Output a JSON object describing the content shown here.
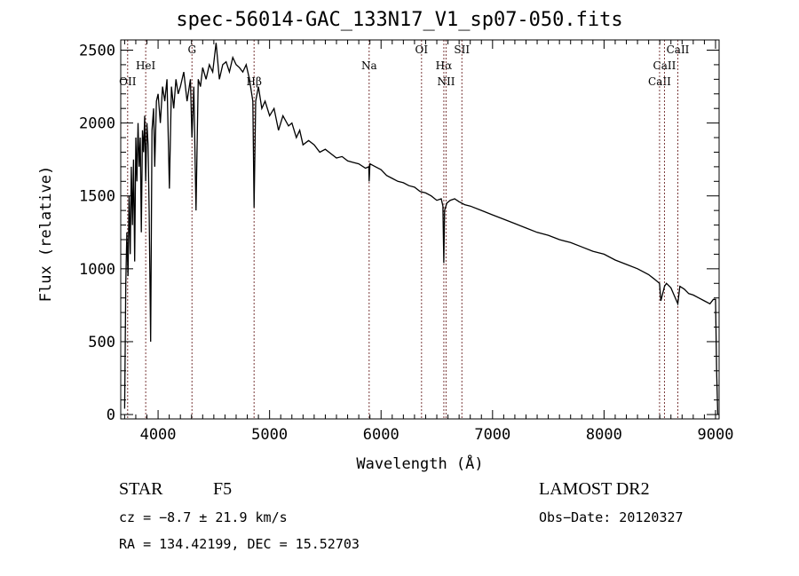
{
  "chart_data": {
    "type": "line",
    "title": "spec-56014-GAC_133N17_V1_sp07-050.fits",
    "xlabel": "Wavelength (Å)",
    "ylabel": "Flux (relative)",
    "xlim": [
      3665,
      9032
    ],
    "ylim": [
      -30,
      2570
    ],
    "xticks": [
      4000,
      5000,
      6000,
      7000,
      8000,
      9000
    ],
    "yticks": [
      0,
      500,
      1000,
      1500,
      2000,
      2500
    ],
    "grid": false,
    "line_color": "#000000",
    "marker_color": "#7a3a3a",
    "series": [
      {
        "name": "spectrum",
        "x": [
          3700,
          3710,
          3720,
          3730,
          3740,
          3750,
          3760,
          3770,
          3780,
          3790,
          3800,
          3810,
          3820,
          3830,
          3840,
          3850,
          3860,
          3870,
          3880,
          3889,
          3900,
          3910,
          3920,
          3933,
          3945,
          3960,
          3970,
          3985,
          4000,
          4020,
          4040,
          4060,
          4080,
          4101,
          4120,
          4140,
          4160,
          4180,
          4200,
          4230,
          4260,
          4290,
          4304,
          4320,
          4340,
          4360,
          4380,
          4400,
          4430,
          4460,
          4490,
          4520,
          4550,
          4580,
          4610,
          4640,
          4670,
          4700,
          4730,
          4760,
          4790,
          4820,
          4850,
          4861,
          4875,
          4900,
          4930,
          4960,
          5000,
          5040,
          5080,
          5120,
          5170,
          5200,
          5240,
          5270,
          5300,
          5350,
          5400,
          5450,
          5500,
          5550,
          5600,
          5650,
          5700,
          5750,
          5800,
          5860,
          5890,
          5893,
          5900,
          5950,
          6000,
          6050,
          6100,
          6150,
          6200,
          6250,
          6300,
          6350,
          6400,
          6450,
          6500,
          6540,
          6555,
          6563,
          6570,
          6590,
          6620,
          6660,
          6700,
          6750,
          6800,
          6900,
          7000,
          7100,
          7200,
          7300,
          7400,
          7500,
          7600,
          7700,
          7800,
          7900,
          8000,
          8100,
          8200,
          8300,
          8400,
          8450,
          8498,
          8510,
          8542,
          8560,
          8600,
          8662,
          8680,
          8720,
          8760,
          8800,
          8850,
          8900,
          8950,
          8980,
          9000,
          9010,
          9020
        ],
        "y": [
          40,
          900,
          1250,
          950,
          1500,
          1100,
          1700,
          1300,
          1750,
          1050,
          1900,
          1600,
          2000,
          1700,
          1900,
          1250,
          1950,
          1800,
          2050,
          1600,
          2000,
          1850,
          1400,
          500,
          1950,
          2100,
          1700,
          2150,
          2200,
          2000,
          2250,
          2150,
          2300,
          1550,
          2250,
          2100,
          2300,
          2200,
          2250,
          2350,
          2150,
          2300,
          1900,
          2250,
          1400,
          2300,
          2250,
          2380,
          2300,
          2400,
          2350,
          2550,
          2300,
          2400,
          2420,
          2350,
          2450,
          2400,
          2380,
          2350,
          2400,
          2300,
          2150,
          1420,
          2150,
          2250,
          2100,
          2150,
          2050,
          2100,
          1950,
          2050,
          1980,
          2000,
          1900,
          1950,
          1850,
          1880,
          1850,
          1800,
          1820,
          1790,
          1760,
          1770,
          1740,
          1730,
          1720,
          1690,
          1700,
          1600,
          1720,
          1700,
          1680,
          1640,
          1620,
          1600,
          1590,
          1570,
          1560,
          1530,
          1520,
          1500,
          1470,
          1480,
          1430,
          1040,
          1400,
          1450,
          1470,
          1480,
          1460,
          1440,
          1430,
          1400,
          1370,
          1340,
          1310,
          1280,
          1250,
          1230,
          1200,
          1180,
          1150,
          1120,
          1100,
          1060,
          1030,
          1000,
          960,
          930,
          900,
          780,
          880,
          900,
          870,
          760,
          880,
          860,
          830,
          820,
          800,
          780,
          760,
          790,
          790,
          300,
          0
        ]
      }
    ],
    "line_markers": [
      {
        "label": "OII",
        "x": 3727,
        "row": 3
      },
      {
        "label": "HeI",
        "x": 3889,
        "row": 2
      },
      {
        "label": "G",
        "x": 4304,
        "row": 1
      },
      {
        "label": "Hβ",
        "x": 4861,
        "row": 3
      },
      {
        "label": "Na",
        "x": 5893,
        "row": 2
      },
      {
        "label": "OI",
        "x": 6363,
        "row": 1
      },
      {
        "label": "Hα",
        "x": 6563,
        "row": 2
      },
      {
        "label": "NII",
        "x": 6583,
        "row": 3
      },
      {
        "label": "SII",
        "x": 6725,
        "row": 1
      },
      {
        "label": "CaII",
        "x": 8498,
        "row": 3
      },
      {
        "label": "CaII",
        "x": 8542,
        "row": 2
      },
      {
        "label": "CaII",
        "x": 8662,
        "row": 1
      }
    ]
  },
  "info": {
    "class": "STAR",
    "subclass": "F5",
    "survey": "LAMOST DR2",
    "cz": "cz = −8.7 ± 21.9 km/s",
    "obs_date": "Obs−Date: 20120327",
    "coords": "RA = 134.42199, DEC =  15.52703"
  }
}
